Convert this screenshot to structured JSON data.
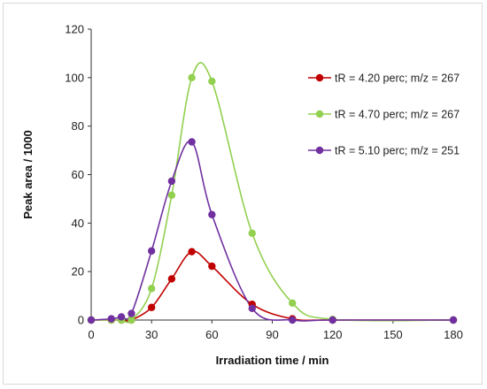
{
  "chart_data": {
    "type": "scatter",
    "title": "",
    "xlabel": "Irradiation time / min",
    "ylabel": "Peak area / 1000",
    "xlim": [
      0,
      180
    ],
    "ylim": [
      0,
      120
    ],
    "x_ticks": [
      "0",
      "30",
      "60",
      "90",
      "120",
      "150",
      "180"
    ],
    "y_ticks": [
      "0",
      "20",
      "40",
      "60",
      "80",
      "100",
      "120"
    ],
    "grid": false,
    "legend_position": "right",
    "series": [
      {
        "name": "tR = 4.20 perc; m/z = 267",
        "color": "#c00000",
        "x": [
          0,
          10,
          15,
          20,
          30,
          40,
          50,
          60,
          80,
          100,
          120,
          180
        ],
        "y": [
          0,
          0,
          0,
          0,
          5.2,
          17,
          28.2,
          22.2,
          6.5,
          0.5,
          0,
          0
        ]
      },
      {
        "name": "tR = 4.70 perc; m/z = 267",
        "color": "#92d050",
        "x": [
          0,
          10,
          15,
          20,
          30,
          40,
          50,
          60,
          80,
          100,
          120,
          180
        ],
        "y": [
          0,
          0,
          0,
          0,
          13,
          51.5,
          100,
          98.5,
          35.8,
          7,
          0.3,
          0
        ]
      },
      {
        "name": "tR = 5.10 perc; m/z = 251",
        "color": "#7030a0",
        "x": [
          0,
          10,
          15,
          20,
          30,
          40,
          50,
          60,
          80,
          100,
          120,
          180
        ],
        "y": [
          0,
          0.5,
          1.3,
          2.7,
          28.5,
          57.3,
          73.5,
          43.5,
          4.8,
          0,
          0,
          0
        ]
      }
    ]
  }
}
